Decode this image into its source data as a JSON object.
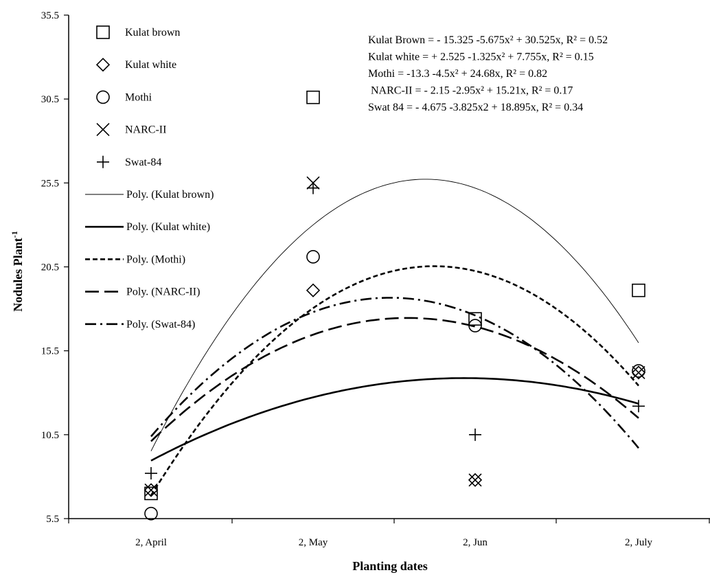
{
  "chart_data": {
    "type": "scatter",
    "xlabel": "Planting dates",
    "ylabel": "Nodules Plant",
    "ylabel_superscript": "-1",
    "categories": [
      "2, April",
      "2, May",
      "2, Jun",
      "2, July"
    ],
    "ylim": [
      5.5,
      35.5
    ],
    "yticks": [
      "5.5",
      "10.5",
      "15.5",
      "20.5",
      "25.5",
      "30.5",
      "35.5"
    ],
    "grid": false,
    "legend_position": "top-left",
    "series": [
      {
        "name": "Kulat brown",
        "marker": "square",
        "values": [
          7.0,
          30.6,
          17.4,
          19.1
        ],
        "trend": {
          "name": "Poly. (Kulat brown)",
          "c0": -15.325,
          "c1": 30.525,
          "c2": -5.675,
          "style": "thin"
        }
      },
      {
        "name": "Kulat white",
        "marker": "diamond",
        "values": [
          7.2,
          19.1,
          7.8,
          14.2
        ],
        "trend": {
          "name": "Poly. (Kulat white)",
          "c0": 2.525,
          "c1": 7.755,
          "c2": -1.325,
          "style": "thick"
        }
      },
      {
        "name": "Mothi",
        "marker": "circle",
        "values": [
          5.8,
          21.1,
          17.0,
          14.3
        ],
        "trend": {
          "name": "Poly. (Mothi)",
          "c0": -13.3,
          "c1": 24.68,
          "c2": -4.5,
          "style": "dotted"
        }
      },
      {
        "name": "NARC-II",
        "marker": "x",
        "values": [
          7.2,
          25.5,
          7.8,
          14.2
        ],
        "trend": {
          "name": "Poly. (NARC-II)",
          "c0": -2.15,
          "c1": 15.21,
          "c2": -2.95,
          "style": "longdash"
        }
      },
      {
        "name": "Swat-84",
        "marker": "plus",
        "values": [
          8.2,
          25.2,
          10.5,
          12.2
        ],
        "trend": {
          "name": "Poly. (Swat-84)",
          "c0": -4.675,
          "c1": 18.895,
          "c2": -3.825,
          "style": "dashdot"
        }
      }
    ],
    "equations": [
      "Kulat Brown = - 15.325 -5.675x² + 30.525x, R² = 0.52",
      "Kulat white = + 2.525 -1.325x² + 7.755x, R² = 0.15",
      "Mothi = -13.3 -4.5x² + 24.68x, R² = 0.82",
      "NARC-II = - 2.15 -2.95x² + 15.21x, R² = 0.17",
      "Swat 84 = - 4.675 -3.825x2 + 18.895x, R² = 0.34"
    ]
  }
}
